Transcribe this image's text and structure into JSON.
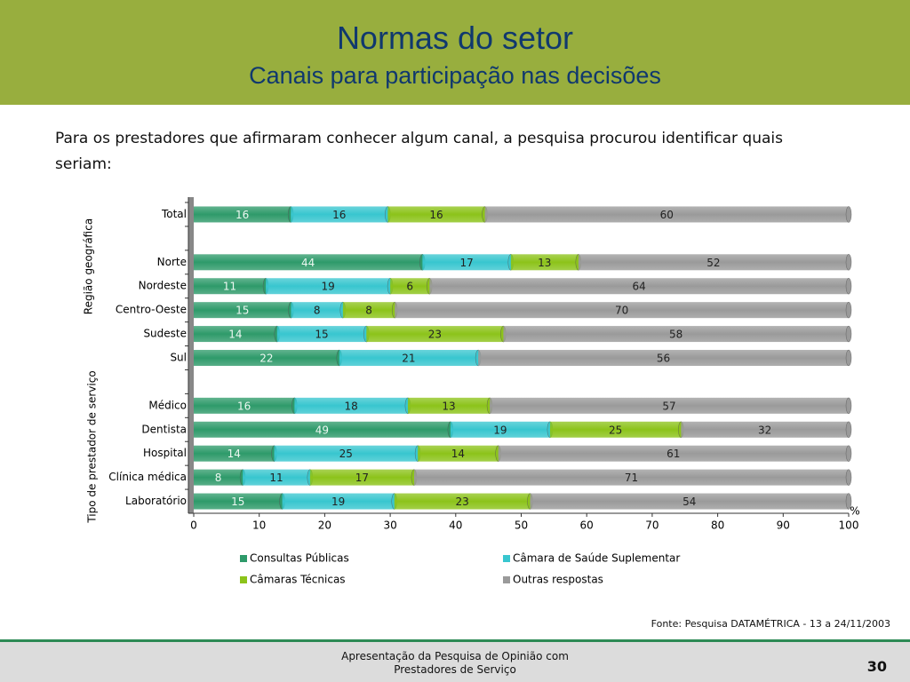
{
  "header": {
    "title": "Normas do setor",
    "subtitle": "Canais para participação nas decisões"
  },
  "intro": "Para os prestadores que afirmaram conhecer algum canal, a pesquisa procurou identificar quais seriam:",
  "chart_data": {
    "type": "bar",
    "orientation": "horizontal",
    "stack": "percent",
    "categories": [
      "Total",
      null,
      "Norte",
      "Nordeste",
      "Centro-Oeste",
      "Sudeste",
      "Sul",
      null,
      "Médico",
      "Dentista",
      "Hospital",
      "Clínica médica",
      "Laboratório"
    ],
    "group_labels": [
      "Região geográfica",
      "Tipo de prestador de serviço"
    ],
    "series": [
      {
        "name": "Consultas Públicas",
        "color": "#2e9a6a",
        "values": [
          16,
          null,
          44,
          11,
          15,
          14,
          22,
          null,
          16,
          49,
          14,
          8,
          15
        ]
      },
      {
        "name": "Câmara de Saúde Suplementar",
        "color": "#38c6cf",
        "values": [
          16,
          null,
          17,
          19,
          8,
          15,
          21,
          null,
          18,
          19,
          25,
          11,
          19
        ]
      },
      {
        "name": "Câmaras Técnicas",
        "color": "#8cc31a",
        "values": [
          16,
          null,
          13,
          6,
          8,
          23,
          null,
          null,
          13,
          25,
          14,
          17,
          23
        ]
      },
      {
        "name": "Outras respostas",
        "color": "#9a9a9a",
        "values": [
          60,
          null,
          52,
          64,
          70,
          58,
          56,
          null,
          57,
          32,
          61,
          71,
          54
        ]
      }
    ],
    "xlim": [
      0,
      100
    ],
    "xticks": [
      0,
      10,
      20,
      30,
      40,
      50,
      60,
      70,
      80,
      90,
      100
    ],
    "x_unit": "%",
    "legend": "bottom"
  },
  "source": "Fonte: Pesquisa DATAMÉTRICA - 13 a 24/11/2003",
  "footer": {
    "lines": [
      "Apresentação da Pesquisa de Opinião com",
      "Prestadores de Serviço"
    ],
    "page": "30"
  }
}
